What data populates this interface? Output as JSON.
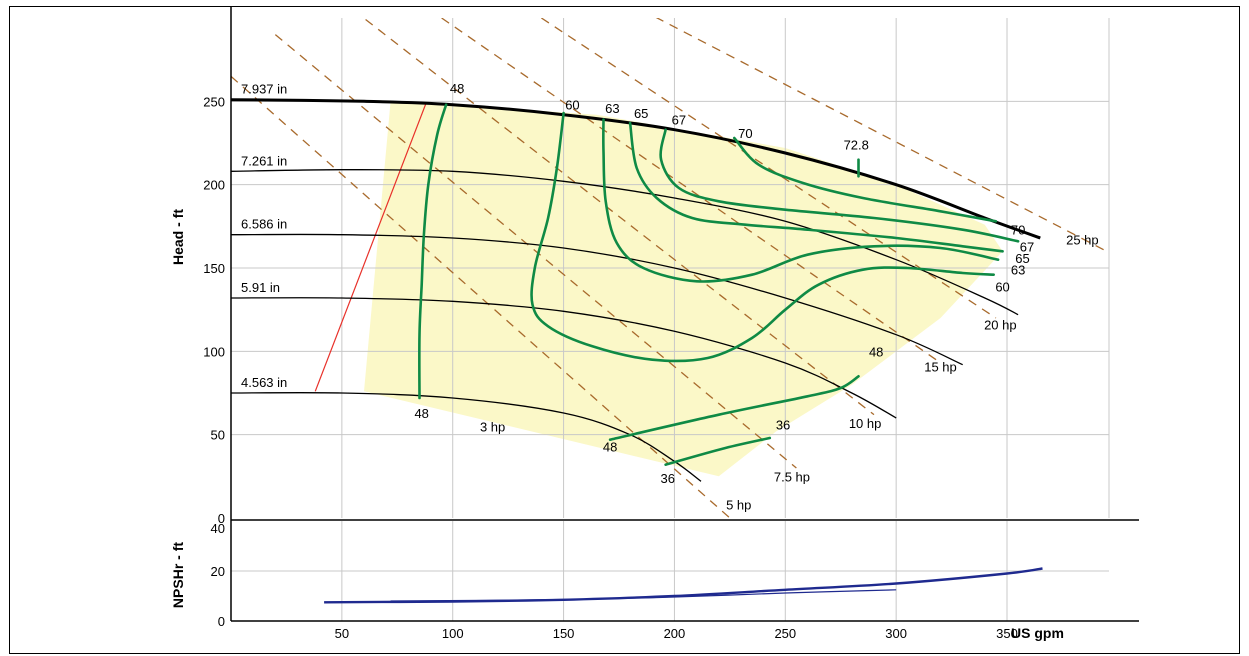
{
  "chart_data": {
    "type": "line",
    "x_unit_label": "US gpm",
    "x_ticks": [
      50,
      100,
      150,
      200,
      250,
      300,
      350
    ],
    "head_axis": {
      "label": "Head - ft",
      "ylim": [
        0,
        300
      ],
      "ticks": [
        0,
        50,
        100,
        150,
        200,
        250
      ],
      "xlim": [
        0,
        396
      ]
    },
    "npsh_axis": {
      "label": "NPSHr - ft",
      "ylim": [
        0,
        40
      ],
      "ticks": [
        0,
        20,
        40
      ]
    },
    "grid": true,
    "colors": {
      "impeller": "#000000",
      "efficiency": "#0f8a45",
      "power": "#a86a2c",
      "npsh": "#1f2a8f",
      "operating_region": "#fbf8c8",
      "limit_line": "#e8312a"
    },
    "operating_region": [
      [
        72,
        250
      ],
      [
        88,
        249
      ],
      [
        165,
        242
      ],
      [
        250,
        222
      ],
      [
        300,
        200
      ],
      [
        340,
        176
      ],
      [
        348,
        160
      ],
      [
        320,
        120
      ],
      [
        280,
        80
      ],
      [
        246,
        52
      ],
      [
        220,
        25
      ],
      [
        60,
        76
      ]
    ],
    "impeller_curves": [
      {
        "label": "7.937 in",
        "points": [
          [
            0,
            251
          ],
          [
            60,
            250
          ],
          [
            100,
            248
          ],
          [
            150,
            242
          ],
          [
            200,
            233
          ],
          [
            250,
            219
          ],
          [
            300,
            200
          ],
          [
            340,
            180
          ],
          [
            365,
            168
          ]
        ]
      },
      {
        "label": "7.261 in",
        "points": [
          [
            0,
            208
          ],
          [
            50,
            209
          ],
          [
            100,
            208
          ],
          [
            150,
            202
          ],
          [
            200,
            192
          ],
          [
            250,
            178
          ],
          [
            300,
            155
          ],
          [
            340,
            132
          ],
          [
            355,
            122
          ]
        ]
      },
      {
        "label": "6.586 in",
        "points": [
          [
            0,
            170
          ],
          [
            50,
            170
          ],
          [
            100,
            168
          ],
          [
            150,
            162
          ],
          [
            200,
            150
          ],
          [
            250,
            132
          ],
          [
            300,
            110
          ],
          [
            330,
            92
          ]
        ]
      },
      {
        "label": "5.91 in",
        "points": [
          [
            0,
            132
          ],
          [
            50,
            132
          ],
          [
            100,
            130
          ],
          [
            150,
            124
          ],
          [
            200,
            112
          ],
          [
            250,
            93
          ],
          [
            280,
            75
          ],
          [
            300,
            60
          ]
        ]
      },
      {
        "label": "4.563 in",
        "points": [
          [
            0,
            75
          ],
          [
            50,
            75
          ],
          [
            100,
            72
          ],
          [
            150,
            63
          ],
          [
            180,
            50
          ],
          [
            200,
            34
          ],
          [
            212,
            22
          ]
        ]
      }
    ],
    "efficiency_contours": [
      {
        "label": "48",
        "points": [
          [
            97,
            248
          ],
          [
            93,
            230
          ],
          [
            89,
            200
          ],
          [
            87,
            170
          ],
          [
            86,
            140
          ],
          [
            85,
            110
          ],
          [
            85,
            72
          ]
        ]
      },
      {
        "label": "60",
        "points": [
          [
            150,
            243
          ],
          [
            147,
            210
          ],
          [
            143,
            180
          ],
          [
            137,
            150
          ],
          [
            136,
            128
          ],
          [
            143,
            115
          ],
          [
            163,
            103
          ],
          [
            190,
            95
          ],
          [
            215,
            96
          ],
          [
            235,
            108
          ],
          [
            250,
            125
          ],
          [
            265,
            140
          ],
          [
            285,
            149
          ],
          [
            305,
            150
          ],
          [
            330,
            147
          ],
          [
            344,
            146
          ]
        ]
      },
      {
        "label": "63",
        "points": [
          [
            168,
            239
          ],
          [
            168,
            220
          ],
          [
            169,
            190
          ],
          [
            174,
            165
          ],
          [
            186,
            150
          ],
          [
            210,
            142
          ],
          [
            235,
            146
          ],
          [
            260,
            158
          ],
          [
            290,
            163
          ],
          [
            320,
            162
          ],
          [
            346,
            155
          ]
        ]
      },
      {
        "label": "65",
        "points": [
          [
            180,
            237
          ],
          [
            183,
            210
          ],
          [
            192,
            192
          ],
          [
            208,
            180
          ],
          [
            232,
            176
          ],
          [
            260,
            173
          ],
          [
            300,
            168
          ],
          [
            330,
            163
          ],
          [
            348,
            160
          ]
        ]
      },
      {
        "label": "67",
        "points": [
          [
            196,
            233
          ],
          [
            194,
            215
          ],
          [
            202,
            198
          ],
          [
            220,
            190
          ],
          [
            250,
            185
          ],
          [
            290,
            180
          ],
          [
            330,
            173
          ],
          [
            355,
            166
          ]
        ]
      },
      {
        "label": "70",
        "points": [
          [
            227,
            228
          ],
          [
            238,
            212
          ],
          [
            258,
            201
          ],
          [
            285,
            192
          ],
          [
            320,
            184
          ],
          [
            345,
            178
          ]
        ]
      },
      {
        "label": "72.8",
        "points": [
          [
            283,
            215
          ],
          [
            283,
            205
          ]
        ]
      },
      {
        "label": "48",
        "points": [
          [
            171,
            47
          ],
          [
            220,
            62
          ],
          [
            260,
            73
          ],
          [
            275,
            78
          ],
          [
            283,
            85
          ]
        ]
      },
      {
        "label": "36",
        "points": [
          [
            196,
            32
          ],
          [
            223,
            42
          ],
          [
            243,
            48
          ]
        ]
      }
    ],
    "power_lines": [
      {
        "label": "5 hp",
        "points": [
          [
            0,
            265
          ],
          [
            225,
            0
          ]
        ]
      },
      {
        "label": "7.5 hp",
        "points": [
          [
            20,
            290
          ],
          [
            255,
            30
          ]
        ]
      },
      {
        "label": "10 hp",
        "points": [
          [
            55,
            305
          ],
          [
            290,
            62
          ]
        ]
      },
      {
        "label": "15 hp",
        "points": [
          [
            95,
            300
          ],
          [
            318,
            95
          ]
        ]
      },
      {
        "label": "20 hp",
        "points": [
          [
            140,
            300
          ],
          [
            345,
            120
          ]
        ]
      },
      {
        "label": "25 hp",
        "points": [
          [
            185,
            305
          ],
          [
            395,
            160
          ]
        ]
      }
    ],
    "limit_line": [
      [
        38,
        76
      ],
      [
        88,
        249
      ]
    ],
    "npsh_curves": [
      {
        "points": [
          [
            42,
            7.5
          ],
          [
            100,
            7.8
          ],
          [
            150,
            8.5
          ],
          [
            200,
            10
          ],
          [
            250,
            12.5
          ],
          [
            300,
            15
          ],
          [
            350,
            19
          ],
          [
            366,
            21
          ]
        ]
      },
      {
        "points": [
          [
            72,
            8
          ],
          [
            150,
            8.6
          ],
          [
            200,
            9.6
          ],
          [
            250,
            11.2
          ],
          [
            300,
            12.5
          ]
        ]
      }
    ],
    "curve_labels": [
      {
        "text": "48",
        "x": 102,
        "y": 255
      },
      {
        "text": "60",
        "x": 154,
        "y": 245
      },
      {
        "text": "63",
        "x": 172,
        "y": 243
      },
      {
        "text": "65",
        "x": 185,
        "y": 240
      },
      {
        "text": "67",
        "x": 202,
        "y": 236
      },
      {
        "text": "70",
        "x": 232,
        "y": 228
      },
      {
        "text": "72.8",
        "x": 282,
        "y": 221
      },
      {
        "text": "70",
        "x": 355,
        "y": 170
      },
      {
        "text": "67",
        "x": 359,
        "y": 160
      },
      {
        "text": "65",
        "x": 357,
        "y": 153
      },
      {
        "text": "63",
        "x": 355,
        "y": 146
      },
      {
        "text": "60",
        "x": 348,
        "y": 136
      },
      {
        "text": "48",
        "x": 291,
        "y": 97
      },
      {
        "text": "48",
        "x": 86,
        "y": 60
      },
      {
        "text": "48",
        "x": 171,
        "y": 40
      },
      {
        "text": "36",
        "x": 249,
        "y": 53
      },
      {
        "text": "36",
        "x": 197,
        "y": 21
      },
      {
        "text": "3 hp",
        "x": 118,
        "y": 52
      },
      {
        "text": "5 hp",
        "x": 229,
        "y": 5
      },
      {
        "text": "7.5 hp",
        "x": 253,
        "y": 22
      },
      {
        "text": "10 hp",
        "x": 286,
        "y": 54
      },
      {
        "text": "15 hp",
        "x": 320,
        "y": 88
      },
      {
        "text": "20 hp",
        "x": 347,
        "y": 113
      },
      {
        "text": "25 hp",
        "x": 384,
        "y": 164
      }
    ]
  }
}
